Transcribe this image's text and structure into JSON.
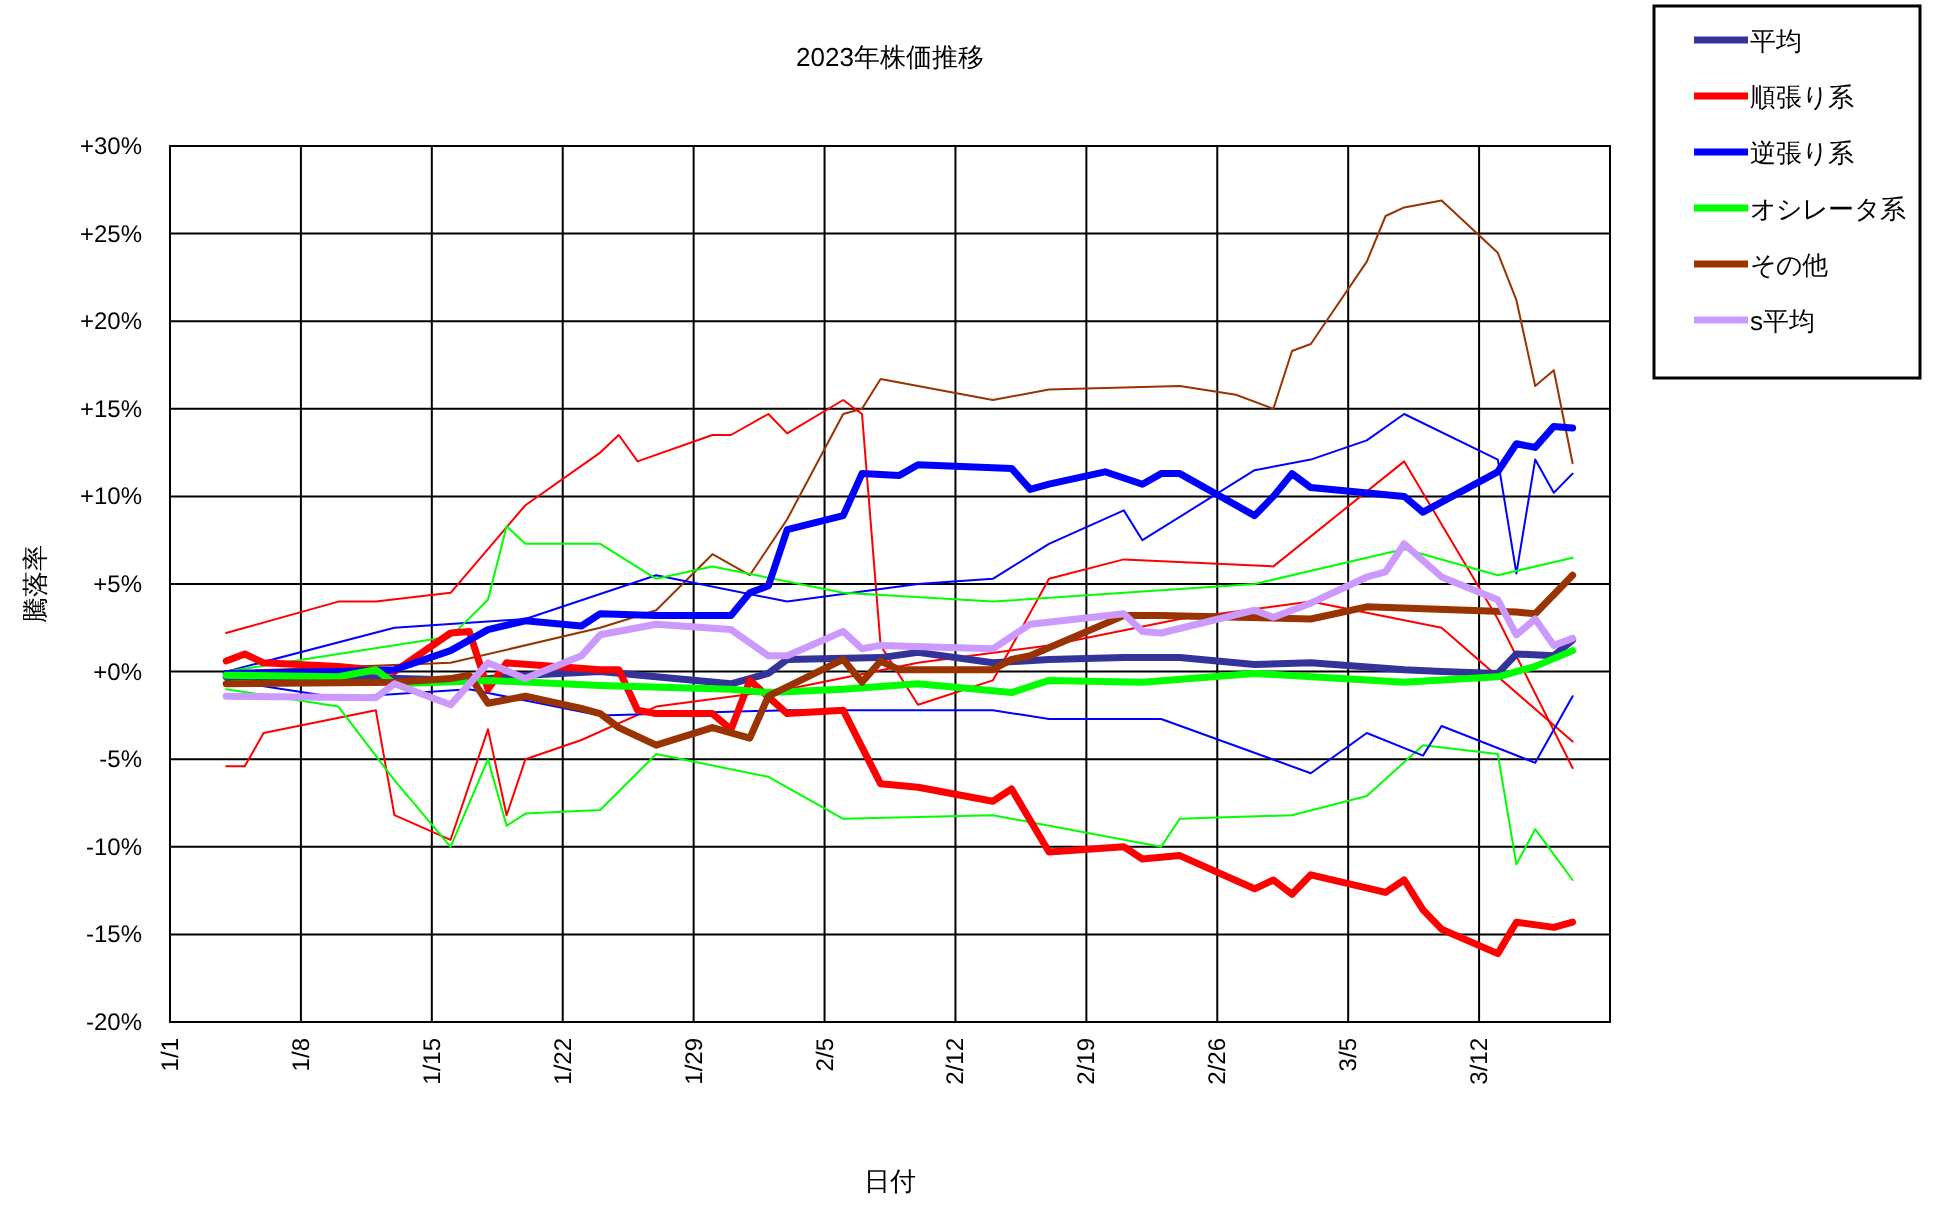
{
  "chart_data": {
    "type": "line",
    "title": "2023年株価推移",
    "xlabel": "日付",
    "ylabel": "騰落率",
    "legend": "right",
    "grid": true,
    "xlim": [
      "2023-01-01",
      "2023-03-19"
    ],
    "ylim": [
      -20,
      30
    ],
    "xticks": [
      {
        "value": "2023-01-01",
        "label": "1/1"
      },
      {
        "value": "2023-01-08",
        "label": "1/8"
      },
      {
        "value": "2023-01-15",
        "label": "1/15"
      },
      {
        "value": "2023-01-22",
        "label": "1/22"
      },
      {
        "value": "2023-01-29",
        "label": "1/29"
      },
      {
        "value": "2023-02-05",
        "label": "2/5"
      },
      {
        "value": "2023-02-12",
        "label": "2/12"
      },
      {
        "value": "2023-02-19",
        "label": "2/19"
      },
      {
        "value": "2023-02-26",
        "label": "2/26"
      },
      {
        "value": "2023-03-05",
        "label": "3/5"
      },
      {
        "value": "2023-03-12",
        "label": "3/12"
      }
    ],
    "yticks": [
      {
        "value": -20,
        "label": "-20%"
      },
      {
        "value": -15,
        "label": "-15%"
      },
      {
        "value": -10,
        "label": "-10%"
      },
      {
        "value": -5,
        "label": "-5%"
      },
      {
        "value": 0,
        "label": "+0%"
      },
      {
        "value": 5,
        "label": "+5%"
      },
      {
        "value": 10,
        "label": "+10%"
      },
      {
        "value": 15,
        "label": "+15%"
      },
      {
        "value": 20,
        "label": "+20%"
      },
      {
        "value": 25,
        "label": "+25%"
      },
      {
        "value": 30,
        "label": "+30%"
      }
    ],
    "series": [
      {
        "name": "平均",
        "color": "#333399",
        "x": [
          "2023-01-04",
          "2023-01-10",
          "2023-01-17",
          "2023-01-20",
          "2023-01-24",
          "2023-01-27",
          "2023-01-31",
          "2023-02-02",
          "2023-02-03",
          "2023-02-08",
          "2023-02-10",
          "2023-02-14",
          "2023-02-17",
          "2023-02-21",
          "2023-02-24",
          "2023-02-28",
          "2023-03-03",
          "2023-03-08",
          "2023-03-10",
          "2023-03-13",
          "2023-03-14",
          "2023-03-16",
          "2023-03-17"
        ],
        "values": [
          -0.3,
          -0.3,
          -0.5,
          -0.2,
          0,
          -0.3,
          -0.7,
          -0.1,
          0.7,
          0.8,
          1.1,
          0.5,
          0.7,
          0.8,
          0.8,
          0.4,
          0.5,
          0.1,
          0,
          -0.1,
          1,
          0.9,
          1.8
        ]
      },
      {
        "name": "順張り系",
        "color": "#ff0000",
        "x": [
          "2023-01-04",
          "2023-01-05",
          "2023-01-06",
          "2023-01-10",
          "2023-01-13",
          "2023-01-16",
          "2023-01-17",
          "2023-01-18",
          "2023-01-19",
          "2023-01-24",
          "2023-01-25",
          "2023-01-26",
          "2023-01-27",
          "2023-01-30",
          "2023-01-31",
          "2023-02-01",
          "2023-02-03",
          "2023-02-06",
          "2023-02-08",
          "2023-02-10",
          "2023-02-14",
          "2023-02-15",
          "2023-02-17",
          "2023-02-21",
          "2023-02-22",
          "2023-02-24",
          "2023-02-28",
          "2023-03-01",
          "2023-03-02",
          "2023-03-03",
          "2023-03-07",
          "2023-03-08",
          "2023-03-09",
          "2023-03-10",
          "2023-03-13",
          "2023-03-14",
          "2023-03-16",
          "2023-03-17"
        ],
        "values": [
          0.6,
          1.0,
          0.5,
          0.3,
          0.0,
          2.2,
          2.3,
          -1.0,
          0.5,
          0.1,
          0.1,
          -2.2,
          -2.4,
          -2.4,
          -3.3,
          -0.5,
          -2.4,
          -2.2,
          -6.4,
          -6.6,
          -7.4,
          -6.7,
          -10.3,
          -10.0,
          -10.7,
          -10.5,
          -12.4,
          -11.9,
          -12.7,
          -11.6,
          -12.6,
          -11.9,
          -13.6,
          -14.7,
          -16.1,
          -14.3,
          -14.6,
          -14.3
        ]
      },
      {
        "name": "逆張り系",
        "color": "#0000ff",
        "x": [
          "2023-01-04",
          "2023-01-10",
          "2023-01-13",
          "2023-01-16",
          "2023-01-18",
          "2023-01-20",
          "2023-01-23",
          "2023-01-24",
          "2023-01-27",
          "2023-01-31",
          "2023-02-01",
          "2023-02-02",
          "2023-02-03",
          "2023-02-06",
          "2023-02-07",
          "2023-02-09",
          "2023-02-10",
          "2023-02-15",
          "2023-02-16",
          "2023-02-17",
          "2023-02-20",
          "2023-02-22",
          "2023-02-23",
          "2023-02-24",
          "2023-02-28",
          "2023-03-01",
          "2023-03-02",
          "2023-03-03",
          "2023-03-08",
          "2023-03-09",
          "2023-03-13",
          "2023-03-14",
          "2023-03-15",
          "2023-03-16",
          "2023-03-17"
        ],
        "values": [
          -0.1,
          0,
          0.1,
          1.2,
          2.4,
          2.9,
          2.6,
          3.3,
          3.2,
          3.2,
          4.5,
          4.9,
          8.1,
          8.9,
          11.3,
          11.2,
          11.8,
          11.6,
          10.4,
          10.7,
          11.4,
          10.7,
          11.3,
          11.3,
          8.9,
          10.0,
          11.3,
          10.5,
          10.0,
          9.1,
          11.4,
          13.0,
          12.8,
          14.0,
          13.9
        ]
      },
      {
        "name": "オシレータ系",
        "color": "#00ff00",
        "x": [
          "2023-01-04",
          "2023-01-10",
          "2023-01-12",
          "2023-01-13",
          "2023-01-18",
          "2023-01-24",
          "2023-01-31",
          "2023-02-02",
          "2023-02-06",
          "2023-02-10",
          "2023-02-15",
          "2023-02-17",
          "2023-02-22",
          "2023-02-28",
          "2023-03-08",
          "2023-03-13",
          "2023-03-15",
          "2023-03-17"
        ],
        "values": [
          -0.2,
          -0.3,
          0.1,
          -0.7,
          -0.5,
          -0.8,
          -1.0,
          -1.2,
          -1.0,
          -0.7,
          -1.2,
          -0.5,
          -0.6,
          -0.1,
          -0.6,
          -0.3,
          0.3,
          1.2
        ]
      },
      {
        "name": "その他",
        "color": "#993300",
        "x": [
          "2023-01-04",
          "2023-01-13",
          "2023-01-16",
          "2023-01-17",
          "2023-01-18",
          "2023-01-20",
          "2023-01-23",
          "2023-01-24",
          "2023-01-25",
          "2023-01-27",
          "2023-01-30",
          "2023-02-01",
          "2023-02-02",
          "2023-02-06",
          "2023-02-07",
          "2023-02-08",
          "2023-02-09",
          "2023-02-14",
          "2023-02-15",
          "2023-02-16",
          "2023-02-21",
          "2023-02-23",
          "2023-03-03",
          "2023-03-06",
          "2023-03-14",
          "2023-03-15",
          "2023-03-17"
        ],
        "values": [
          -0.7,
          -0.6,
          -0.4,
          -0.2,
          -1.8,
          -1.4,
          -2.1,
          -2.4,
          -3.2,
          -4.2,
          -3.2,
          -3.8,
          -1.4,
          0.7,
          -0.6,
          0.6,
          0.1,
          0.1,
          0.7,
          0.9,
          3.2,
          3.2,
          3.0,
          3.7,
          3.4,
          3.3,
          5.5
        ]
      },
      {
        "name": "s平均",
        "color": "#cc99ff",
        "x": [
          "2023-01-04",
          "2023-01-12",
          "2023-01-13",
          "2023-01-16",
          "2023-01-18",
          "2023-01-20",
          "2023-01-23",
          "2023-01-24",
          "2023-01-27",
          "2023-01-31",
          "2023-02-02",
          "2023-02-03",
          "2023-02-06",
          "2023-02-07",
          "2023-02-08",
          "2023-02-14",
          "2023-02-16",
          "2023-02-21",
          "2023-02-22",
          "2023-02-23",
          "2023-02-28",
          "2023-03-01",
          "2023-03-03",
          "2023-03-06",
          "2023-03-07",
          "2023-03-08",
          "2023-03-10",
          "2023-03-13",
          "2023-03-14",
          "2023-03-15",
          "2023-03-16",
          "2023-03-17"
        ],
        "values": [
          -1.4,
          -1.5,
          -0.7,
          -1.9,
          0.5,
          -0.4,
          0.9,
          2.1,
          2.7,
          2.4,
          0.9,
          0.9,
          2.3,
          1.3,
          1.5,
          1.3,
          2.7,
          3.3,
          2.3,
          2.2,
          3.5,
          3.1,
          3.9,
          5.4,
          5.7,
          7.3,
          5.4,
          4.1,
          2.1,
          3.0,
          1.5,
          1.9
        ]
      },
      {
        "color": "#993300",
        "x": [
          "2023-01-04",
          "2023-01-16",
          "2023-01-24",
          "2023-01-27",
          "2023-01-30",
          "2023-02-01",
          "2023-02-03",
          "2023-02-06",
          "2023-02-07",
          "2023-02-08",
          "2023-02-14",
          "2023-02-17",
          "2023-02-24",
          "2023-02-27",
          "2023-03-01",
          "2023-03-02",
          "2023-03-03",
          "2023-03-06",
          "2023-03-07",
          "2023-03-08",
          "2023-03-10",
          "2023-03-13",
          "2023-03-14",
          "2023-03-15",
          "2023-03-16",
          "2023-03-17"
        ],
        "values": [
          0,
          0.5,
          2.5,
          3.5,
          6.7,
          5.5,
          8.7,
          14.7,
          15.0,
          16.7,
          15.5,
          16.1,
          16.3,
          15.8,
          15.0,
          18.3,
          18.7,
          23.4,
          26.0,
          26.5,
          26.9,
          23.9,
          21.2,
          16.3,
          17.2,
          11.9
        ]
      },
      {
        "color": "#ff0000",
        "x": [
          "2023-01-04",
          "2023-01-05",
          "2023-01-10",
          "2023-01-12",
          "2023-01-16",
          "2023-01-20",
          "2023-01-24",
          "2023-01-25",
          "2023-01-26",
          "2023-01-30",
          "2023-01-31",
          "2023-02-02",
          "2023-02-03",
          "2023-02-06",
          "2023-02-07",
          "2023-02-08",
          "2023-02-10",
          "2023-02-14",
          "2023-02-17",
          "2023-02-21",
          "2023-03-01",
          "2023-03-08",
          "2023-03-13",
          "2023-03-17"
        ],
        "values": [
          2.2,
          2.5,
          4.0,
          4.0,
          4.5,
          9.5,
          12.5,
          13.5,
          12.0,
          13.5,
          13.5,
          14.7,
          13.6,
          15.5,
          14.7,
          1.5,
          -1.9,
          -0.5,
          5.3,
          6.4,
          6.0,
          12.0,
          3.0,
          -5.5
        ]
      },
      {
        "color": "#ff0000",
        "x": [
          "2023-01-04",
          "2023-01-05",
          "2023-01-06",
          "2023-01-12",
          "2023-01-13",
          "2023-01-16",
          "2023-01-18",
          "2023-01-19",
          "2023-01-20",
          "2023-01-23",
          "2023-01-27",
          "2023-02-03",
          "2023-02-10",
          "2023-02-17",
          "2023-02-24",
          "2023-03-03",
          "2023-03-10",
          "2023-03-17"
        ],
        "values": [
          -5.4,
          -5.4,
          -3.5,
          -2.2,
          -8.2,
          -9.6,
          -3.3,
          -8.2,
          -5.0,
          -3.9,
          -2.0,
          -1.0,
          0.5,
          1.5,
          3.0,
          4.0,
          2.5,
          -4.0
        ]
      },
      {
        "color": "#00ff00",
        "x": [
          "2023-01-04",
          "2023-01-10",
          "2023-01-13",
          "2023-01-16",
          "2023-01-18",
          "2023-01-19",
          "2023-01-20",
          "2023-01-24",
          "2023-01-27",
          "2023-02-02",
          "2023-02-06",
          "2023-02-14",
          "2023-02-23",
          "2023-02-24",
          "2023-03-02",
          "2023-03-06",
          "2023-03-09",
          "2023-03-13",
          "2023-03-14",
          "2023-03-15",
          "2023-03-17"
        ],
        "values": [
          -1.0,
          -2.0,
          -6.2,
          -10.0,
          -5.0,
          -8.8,
          -8.1,
          -7.9,
          -4.7,
          -6.0,
          -8.4,
          -8.2,
          -10.0,
          -8.4,
          -8.2,
          -7.1,
          -4.2,
          -4.7,
          -11.0,
          -9.0,
          -11.9
        ]
      },
      {
        "color": "#0000ff",
        "x": [
          "2023-01-04",
          "2023-01-13",
          "2023-01-20",
          "2023-01-27",
          "2023-02-03",
          "2023-02-10",
          "2023-02-14",
          "2023-02-17",
          "2023-02-21",
          "2023-02-22",
          "2023-02-28",
          "2023-03-03",
          "2023-03-06",
          "2023-03-08",
          "2023-03-13",
          "2023-03-14",
          "2023-03-15",
          "2023-03-16",
          "2023-03-17"
        ],
        "values": [
          0,
          2.5,
          3.0,
          5.5,
          4.0,
          5.0,
          5.3,
          7.3,
          9.2,
          7.5,
          11.5,
          12.1,
          13.2,
          14.7,
          12.1,
          5.6,
          12.1,
          10.2,
          11.3
        ]
      },
      {
        "color": "#00ff00",
        "x": [
          "2023-01-04",
          "2023-01-10",
          "2023-01-16",
          "2023-01-18",
          "2023-01-19",
          "2023-01-20",
          "2023-01-24",
          "2023-01-27",
          "2023-01-30",
          "2023-02-06",
          "2023-02-14",
          "2023-02-21",
          "2023-02-28",
          "2023-03-08",
          "2023-03-13",
          "2023-03-17"
        ],
        "values": [
          0,
          1.0,
          2.0,
          4.1,
          8.3,
          7.3,
          7.3,
          5.3,
          6.0,
          4.5,
          4.0,
          4.5,
          5.0,
          7.0,
          5.5,
          6.5
        ]
      },
      {
        "color": "#0000ff",
        "x": [
          "2023-01-04",
          "2023-01-10",
          "2023-01-17",
          "2023-01-24",
          "2023-02-03",
          "2023-02-14",
          "2023-02-17",
          "2023-02-23",
          "2023-03-03",
          "2023-03-06",
          "2023-03-09",
          "2023-03-10",
          "2023-03-15",
          "2023-03-17"
        ],
        "values": [
          -0.5,
          -1.5,
          -1.0,
          -2.5,
          -2.2,
          -2.2,
          -2.7,
          -2.7,
          -5.8,
          -3.5,
          -4.8,
          -3.1,
          -5.2,
          -1.4
        ]
      }
    ]
  }
}
